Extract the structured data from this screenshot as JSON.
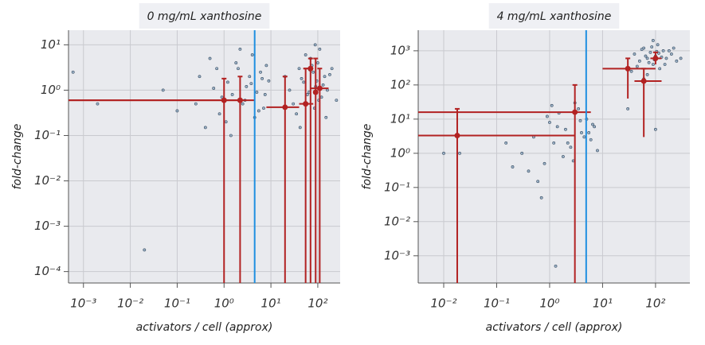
{
  "chart_data": [
    {
      "type": "scatter",
      "title": "0 mg/mL xanthosine",
      "xlabel": "activators / cell (approx)",
      "ylabel": "fold-change",
      "log_x": true,
      "log_y": true,
      "grid": true,
      "xlim": [
        0.00048,
        300
      ],
      "ylim": [
        5.6e-05,
        21
      ],
      "xticks": [
        {
          "value": 0.001,
          "label": "10⁻³"
        },
        {
          "value": 0.01,
          "label": "10⁻²"
        },
        {
          "value": 0.1,
          "label": "10⁻¹"
        },
        {
          "value": 1,
          "label": "10⁰"
        },
        {
          "value": 10,
          "label": "10¹"
        },
        {
          "value": 100,
          "label": "10²"
        }
      ],
      "yticks": [
        {
          "value": 0.0001,
          "label": "10⁻⁴"
        },
        {
          "value": 0.001,
          "label": "10⁻³"
        },
        {
          "value": 0.01,
          "label": "10⁻²"
        },
        {
          "value": 0.1,
          "label": "10⁻¹"
        },
        {
          "value": 1,
          "label": "10⁰"
        },
        {
          "value": 10,
          "label": "10¹"
        }
      ],
      "points": {
        "color": "#9db3c8",
        "x": [
          0.3,
          0.5,
          0.8,
          1.2,
          1.5,
          2,
          2.5,
          3,
          4,
          5,
          6,
          7,
          0.4,
          0.9,
          1.8,
          3.5,
          4.5,
          6.5,
          8,
          0.6,
          1.1,
          2.2,
          2.8,
          3.8,
          5.5,
          7.5,
          1.4,
          0.7,
          9,
          0.25,
          20,
          30,
          40,
          50,
          60,
          70,
          80,
          90,
          100,
          120,
          140,
          160,
          200,
          250,
          35,
          45,
          55,
          65,
          75,
          85,
          95,
          110,
          130,
          150,
          180,
          25,
          42,
          68,
          88,
          105,
          0.0006,
          0.1,
          0.05,
          0.002,
          0.02
        ],
        "y": [
          2,
          5,
          0.3,
          1.5,
          0.8,
          3,
          0.5,
          1.2,
          6,
          0.9,
          2.5,
          0.4,
          0.15,
          0.7,
          4,
          2,
          0.25,
          1.8,
          3.5,
          1.1,
          0.2,
          8,
          0.6,
          1.4,
          0.35,
          0.8,
          0.1,
          3,
          1.6,
          0.5,
          2,
          0.5,
          3,
          1.5,
          0.8,
          5,
          2.5,
          1.2,
          4,
          0.7,
          2,
          1,
          3,
          0.6,
          0.3,
          1.8,
          6,
          0.9,
          3.5,
          0.4,
          1.6,
          8,
          1.3,
          0.25,
          2.2,
          1,
          0.15,
          2.8,
          10,
          0.6,
          2.5,
          0.35,
          1,
          0.5,
          0.0003
        ]
      },
      "errorbars": {
        "color": "#b22222",
        "x": [
          1,
          2.2,
          20,
          55,
          90,
          110,
          70
        ],
        "y": [
          0.6,
          0.6,
          0.42,
          0.5,
          0.9,
          1.1,
          3
        ],
        "xlo": [
          0.0001,
          0.0001,
          8,
          40,
          80,
          70,
          50
        ],
        "xhi": [
          3,
          4.5,
          40,
          80,
          100,
          170,
          80
        ],
        "ylo": [
          1e-05,
          1e-05,
          1e-05,
          1e-05,
          1e-05,
          1e-05,
          1e-05
        ],
        "yhi": [
          1.8,
          2,
          2,
          3,
          5,
          3,
          5
        ]
      },
      "vline": {
        "x": 4.5,
        "color": "#1f8fe0"
      }
    },
    {
      "type": "scatter",
      "title": "4 mg/mL xanthosine",
      "xlabel": "activators / cell (approx)",
      "ylabel": "fold-change",
      "log_x": true,
      "log_y": true,
      "grid": true,
      "xlim": [
        0.0033,
        445
      ],
      "ylim": [
        0.00016,
        4000
      ],
      "xticks": [
        {
          "value": 0.01,
          "label": "10⁻²"
        },
        {
          "value": 0.1,
          "label": "10⁻¹"
        },
        {
          "value": 1,
          "label": "10⁰"
        },
        {
          "value": 10,
          "label": "10¹"
        },
        {
          "value": 100,
          "label": "10²"
        }
      ],
      "yticks": [
        {
          "value": 0.001,
          "label": "10⁻³"
        },
        {
          "value": 0.01,
          "label": "10⁻²"
        },
        {
          "value": 0.1,
          "label": "10⁻¹"
        },
        {
          "value": 1,
          "label": "10⁰"
        },
        {
          "value": 10,
          "label": "10¹"
        },
        {
          "value": 100,
          "label": "10²"
        },
        {
          "value": 1000,
          "label": "10³"
        }
      ],
      "points": {
        "color": "#9db3c8",
        "x": [
          0.3,
          0.5,
          0.8,
          1,
          1.2,
          1.5,
          2,
          2.5,
          3,
          4,
          5,
          6,
          7,
          0.4,
          0.9,
          1.8,
          3.5,
          4.5,
          6.5,
          8,
          0.6,
          1.1,
          2.2,
          2.8,
          3.8,
          5.5,
          0.2,
          0.15,
          1.4,
          0.7,
          40,
          50,
          60,
          70,
          80,
          90,
          100,
          110,
          120,
          140,
          160,
          200,
          250,
          45,
          55,
          65,
          75,
          85,
          95,
          105,
          130,
          150,
          180,
          35,
          300,
          220,
          70,
          90,
          115,
          60,
          30,
          100,
          0.02,
          1.3,
          0.01
        ],
        "y": [
          1,
          3,
          0.5,
          8,
          2,
          15,
          5,
          1.5,
          30,
          4,
          10,
          2.5,
          6,
          0.3,
          12,
          0.8,
          20,
          3,
          7,
          1.2,
          0.15,
          25,
          2,
          0.6,
          9,
          4,
          0.4,
          2,
          6,
          0.05,
          800,
          500,
          1200,
          600,
          900,
          400,
          700,
          1500,
          300,
          1000,
          600,
          800,
          500,
          350,
          1100,
          700,
          450,
          1300,
          550,
          950,
          650,
          400,
          1000,
          250,
          600,
          1200,
          200,
          2000,
          850,
          150,
          20,
          5,
          1,
          0.0005,
          1
        ]
      },
      "errorbars": {
        "color": "#b22222",
        "x": [
          0.018,
          3,
          30,
          60,
          100
        ],
        "y": [
          3.3,
          16,
          300,
          130,
          600
        ],
        "xlo": [
          0.001,
          0.001,
          10,
          40,
          80
        ],
        "xhi": [
          3,
          6,
          100,
          130,
          130
        ],
        "ylo": [
          1e-05,
          1e-05,
          40,
          3,
          400
        ],
        "yhi": [
          20,
          100,
          600,
          300,
          900
        ]
      },
      "vline": {
        "x": 4.9,
        "color": "#1f8fe0"
      }
    }
  ]
}
